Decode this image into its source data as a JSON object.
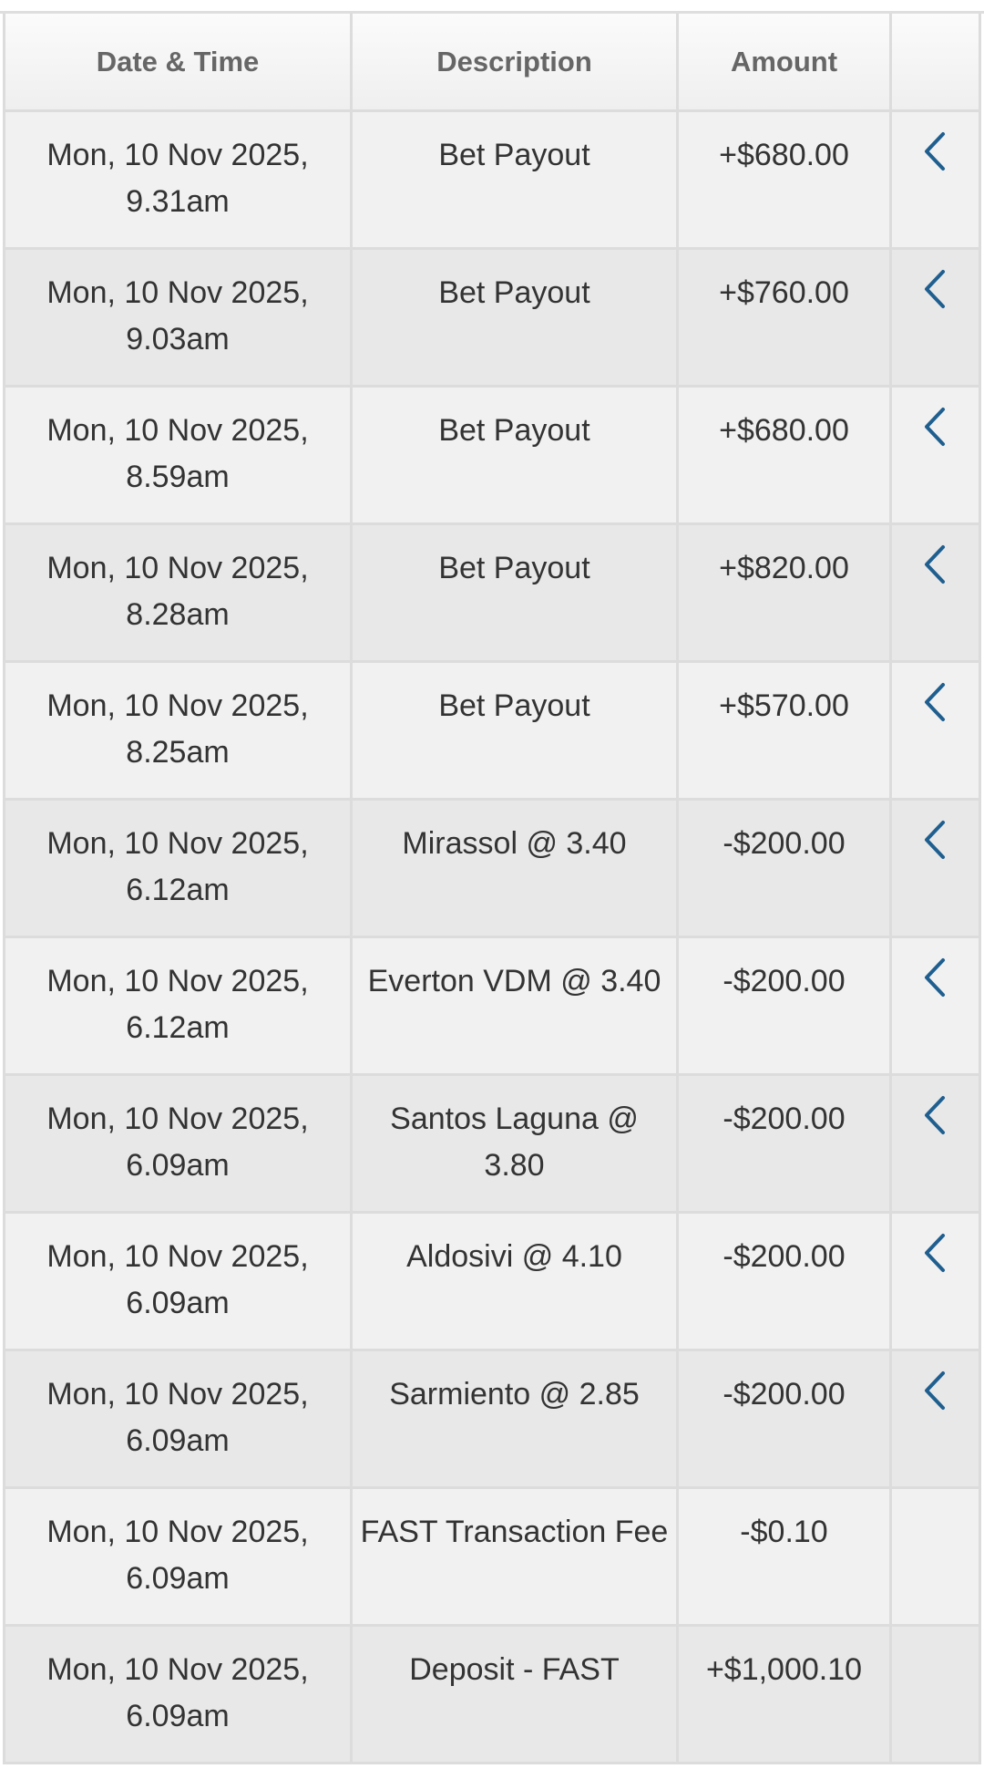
{
  "table": {
    "headers": [
      "Date & Time",
      "Description",
      "Amount",
      ""
    ],
    "accent_color": "#1f5f8f",
    "rows": [
      {
        "date": "Mon, 10 Nov 2025,",
        "time": "9.31am",
        "description": "Bet Payout",
        "amount": "+$680.00",
        "expandable": true
      },
      {
        "date": "Mon, 10 Nov 2025,",
        "time": "9.03am",
        "description": "Bet Payout",
        "amount": "+$760.00",
        "expandable": true
      },
      {
        "date": "Mon, 10 Nov 2025,",
        "time": "8.59am",
        "description": "Bet Payout",
        "amount": "+$680.00",
        "expandable": true
      },
      {
        "date": "Mon, 10 Nov 2025,",
        "time": "8.28am",
        "description": "Bet Payout",
        "amount": "+$820.00",
        "expandable": true
      },
      {
        "date": "Mon, 10 Nov 2025,",
        "time": "8.25am",
        "description": "Bet Payout",
        "amount": "+$570.00",
        "expandable": true
      },
      {
        "date": "Mon, 10 Nov 2025,",
        "time": "6.12am",
        "description": "Mirassol @ 3.40",
        "amount": "-$200.00",
        "expandable": true
      },
      {
        "date": "Mon, 10 Nov 2025,",
        "time": "6.12am",
        "description": "Everton VDM @ 3.40",
        "amount": "-$200.00",
        "expandable": true
      },
      {
        "date": "Mon, 10 Nov 2025,",
        "time": "6.09am",
        "description": "Santos Laguna @ 3.80",
        "amount": "-$200.00",
        "expandable": true
      },
      {
        "date": "Mon, 10 Nov 2025,",
        "time": "6.09am",
        "description": "Aldosivi @ 4.10",
        "amount": "-$200.00",
        "expandable": true
      },
      {
        "date": "Mon, 10 Nov 2025,",
        "time": "6.09am",
        "description": "Sarmiento @ 2.85",
        "amount": "-$200.00",
        "expandable": true
      },
      {
        "date": "Mon, 10 Nov 2025,",
        "time": "6.09am",
        "description": "FAST Transaction Fee",
        "amount": "-$0.10",
        "expandable": false
      },
      {
        "date": "Mon, 10 Nov 2025,",
        "time": "6.09am",
        "description": "Deposit - FAST",
        "amount": "+$1,000.10",
        "expandable": false
      }
    ]
  }
}
